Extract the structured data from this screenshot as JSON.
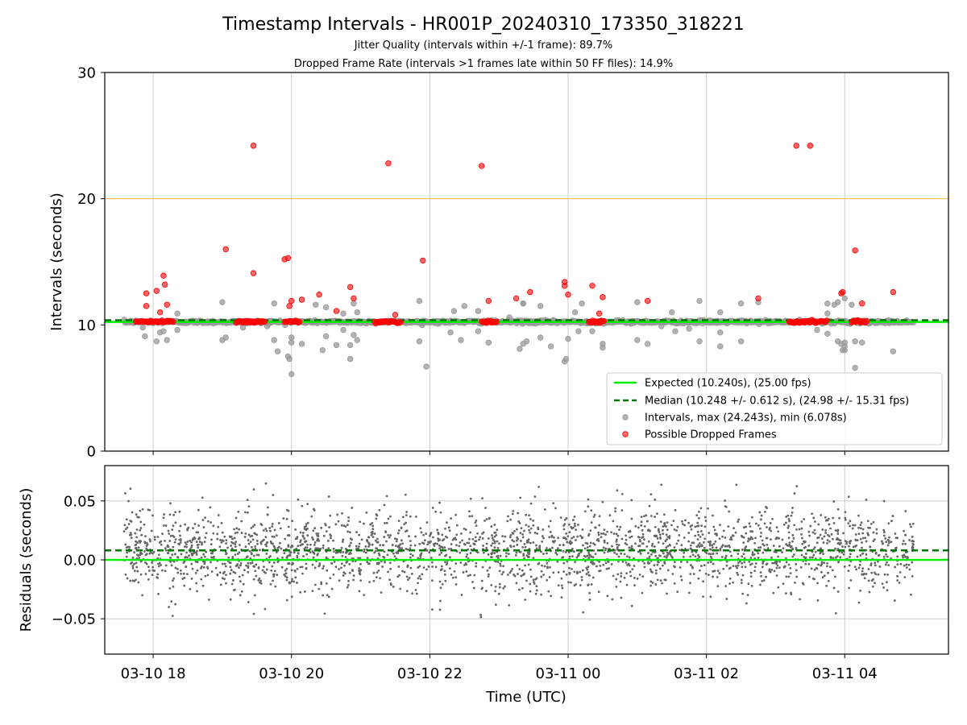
{
  "title": "Timestamp Intervals - HR001P_20240310_173350_318221",
  "subtitle_1": "Jitter Quality (intervals within +/-1 frame): 89.7%",
  "subtitle_2": "Dropped Frame Rate (intervals >1 frames late within 50 FF files): 14.9%",
  "colors": {
    "expected": "#00ee00",
    "median": "#007700",
    "intervals": "#999999",
    "dropped": "#ff0000",
    "threshold": "#ffbb55",
    "residuals": "#666666",
    "grid": "#cccccc"
  },
  "chart_data": [
    {
      "type": "scatter",
      "panel": "top",
      "ylabel": "Intervals (seconds)",
      "ylim": [
        0,
        30
      ],
      "yticks": [
        "0",
        "10",
        "20",
        "30"
      ],
      "grid": "vertical",
      "legend_position": "lower-right",
      "x_range_hours": [
        17.3,
        29.5
      ],
      "expected_line": 10.24,
      "median_line": 10.248,
      "threshold_line": 20.0,
      "legend": [
        "Expected (10.240s), (25.00 fps)",
        "Median (10.248 +/- 0.612 s), (24.98 +/- 15.31 fps)",
        "Intervals, max (24.243s), min (6.078s)",
        "Possible Dropped Frames"
      ],
      "dropped_frames": [
        {
          "x": 17.9,
          "y": 12.5
        },
        {
          "x": 17.9,
          "y": 11.5
        },
        {
          "x": 18.05,
          "y": 12.7
        },
        {
          "x": 18.1,
          "y": 11.0
        },
        {
          "x": 18.15,
          "y": 13.9
        },
        {
          "x": 18.17,
          "y": 13.2
        },
        {
          "x": 18.2,
          "y": 11.6
        },
        {
          "x": 19.05,
          "y": 16.0
        },
        {
          "x": 19.45,
          "y": 24.2
        },
        {
          "x": 19.45,
          "y": 14.1
        },
        {
          "x": 19.9,
          "y": 15.2
        },
        {
          "x": 19.95,
          "y": 15.3
        },
        {
          "x": 19.97,
          "y": 11.5
        },
        {
          "x": 20.0,
          "y": 11.9
        },
        {
          "x": 20.15,
          "y": 12.0
        },
        {
          "x": 20.4,
          "y": 12.4
        },
        {
          "x": 20.65,
          "y": 11.1
        },
        {
          "x": 20.85,
          "y": 13.0
        },
        {
          "x": 20.9,
          "y": 12.1
        },
        {
          "x": 21.4,
          "y": 22.8
        },
        {
          "x": 21.5,
          "y": 10.8
        },
        {
          "x": 21.9,
          "y": 15.1
        },
        {
          "x": 22.75,
          "y": 22.6
        },
        {
          "x": 22.85,
          "y": 11.9
        },
        {
          "x": 23.25,
          "y": 12.1
        },
        {
          "x": 23.45,
          "y": 12.6
        },
        {
          "x": 23.95,
          "y": 13.4
        },
        {
          "x": 23.95,
          "y": 13.1
        },
        {
          "x": 24.0,
          "y": 12.4
        },
        {
          "x": 24.35,
          "y": 13.1
        },
        {
          "x": 24.45,
          "y": 10.9
        },
        {
          "x": 24.5,
          "y": 12.2
        },
        {
          "x": 25.15,
          "y": 11.9
        },
        {
          "x": 26.75,
          "y": 12.1
        },
        {
          "x": 27.3,
          "y": 24.2
        },
        {
          "x": 27.5,
          "y": 24.2
        },
        {
          "x": 27.95,
          "y": 12.5
        },
        {
          "x": 27.97,
          "y": 12.6
        },
        {
          "x": 28.15,
          "y": 15.9
        },
        {
          "x": 28.25,
          "y": 11.7
        },
        {
          "x": 28.7,
          "y": 12.6
        }
      ],
      "dropped_frame_bands": [
        [
          17.75,
          18.3
        ],
        [
          19.2,
          19.62
        ],
        [
          19.9,
          20.12
        ],
        [
          21.2,
          21.58
        ],
        [
          22.75,
          22.98
        ],
        [
          24.3,
          24.52
        ],
        [
          27.2,
          27.75
        ],
        [
          28.1,
          28.32
        ]
      ],
      "outlier_intervals": [
        {
          "x": 17.85,
          "y": 9.8
        },
        {
          "x": 17.88,
          "y": 9.1
        },
        {
          "x": 18.05,
          "y": 8.7
        },
        {
          "x": 18.1,
          "y": 9.4
        },
        {
          "x": 18.15,
          "y": 9.5
        },
        {
          "x": 18.2,
          "y": 8.8
        },
        {
          "x": 18.35,
          "y": 9.6
        },
        {
          "x": 18.35,
          "y": 10.9
        },
        {
          "x": 19.0,
          "y": 11.8
        },
        {
          "x": 19.05,
          "y": 9.0
        },
        {
          "x": 19.0,
          "y": 8.8
        },
        {
          "x": 19.3,
          "y": 9.8
        },
        {
          "x": 19.65,
          "y": 9.9
        },
        {
          "x": 19.75,
          "y": 11.7
        },
        {
          "x": 19.75,
          "y": 8.8
        },
        {
          "x": 19.8,
          "y": 7.9
        },
        {
          "x": 19.95,
          "y": 7.5
        },
        {
          "x": 19.97,
          "y": 7.3
        },
        {
          "x": 20.0,
          "y": 6.1
        },
        {
          "x": 20.0,
          "y": 9.0
        },
        {
          "x": 20.0,
          "y": 8.6
        },
        {
          "x": 20.15,
          "y": 8.5
        },
        {
          "x": 20.35,
          "y": 11.6
        },
        {
          "x": 20.45,
          "y": 8.0
        },
        {
          "x": 20.5,
          "y": 9.1
        },
        {
          "x": 20.5,
          "y": 11.4
        },
        {
          "x": 20.65,
          "y": 8.4
        },
        {
          "x": 20.75,
          "y": 10.9
        },
        {
          "x": 20.75,
          "y": 9.6
        },
        {
          "x": 20.85,
          "y": 7.3
        },
        {
          "x": 20.85,
          "y": 8.4
        },
        {
          "x": 20.9,
          "y": 9.2
        },
        {
          "x": 20.9,
          "y": 11.7
        },
        {
          "x": 20.95,
          "y": 11.0
        },
        {
          "x": 20.95,
          "y": 8.8
        },
        {
          "x": 21.85,
          "y": 11.9
        },
        {
          "x": 21.85,
          "y": 8.7
        },
        {
          "x": 21.95,
          "y": 6.7
        },
        {
          "x": 22.3,
          "y": 9.4
        },
        {
          "x": 22.35,
          "y": 11.1
        },
        {
          "x": 22.45,
          "y": 8.8
        },
        {
          "x": 22.5,
          "y": 11.5
        },
        {
          "x": 22.7,
          "y": 11.1
        },
        {
          "x": 22.7,
          "y": 9.5
        },
        {
          "x": 22.85,
          "y": 8.6
        },
        {
          "x": 23.15,
          "y": 10.6
        },
        {
          "x": 23.3,
          "y": 8.1
        },
        {
          "x": 23.35,
          "y": 11.7
        },
        {
          "x": 23.35,
          "y": 8.5
        },
        {
          "x": 23.4,
          "y": 8.7
        },
        {
          "x": 23.6,
          "y": 11.5
        },
        {
          "x": 23.6,
          "y": 9.0
        },
        {
          "x": 23.75,
          "y": 8.3
        },
        {
          "x": 23.95,
          "y": 7.1
        },
        {
          "x": 23.97,
          "y": 7.3
        },
        {
          "x": 24.0,
          "y": 8.9
        },
        {
          "x": 24.1,
          "y": 11.0
        },
        {
          "x": 24.15,
          "y": 9.5
        },
        {
          "x": 24.2,
          "y": 11.7
        },
        {
          "x": 24.35,
          "y": 9.5
        },
        {
          "x": 24.5,
          "y": 8.5
        },
        {
          "x": 24.5,
          "y": 8.2
        },
        {
          "x": 25.0,
          "y": 11.8
        },
        {
          "x": 25.0,
          "y": 8.8
        },
        {
          "x": 25.15,
          "y": 8.5
        },
        {
          "x": 25.35,
          "y": 9.9
        },
        {
          "x": 25.5,
          "y": 11.0
        },
        {
          "x": 25.55,
          "y": 9.5
        },
        {
          "x": 25.75,
          "y": 9.7
        },
        {
          "x": 25.9,
          "y": 11.9
        },
        {
          "x": 25.9,
          "y": 8.7
        },
        {
          "x": 26.2,
          "y": 8.3
        },
        {
          "x": 26.2,
          "y": 9.4
        },
        {
          "x": 26.2,
          "y": 11.0
        },
        {
          "x": 26.5,
          "y": 11.7
        },
        {
          "x": 26.5,
          "y": 8.7
        },
        {
          "x": 26.75,
          "y": 11.8
        },
        {
          "x": 27.6,
          "y": 9.6
        },
        {
          "x": 27.75,
          "y": 10.9
        },
        {
          "x": 27.75,
          "y": 9.3
        },
        {
          "x": 27.85,
          "y": 11.6
        },
        {
          "x": 27.9,
          "y": 11.8
        },
        {
          "x": 27.9,
          "y": 8.7
        },
        {
          "x": 27.95,
          "y": 8.5
        },
        {
          "x": 27.97,
          "y": 8.0
        },
        {
          "x": 28.0,
          "y": 8.0
        },
        {
          "x": 28.0,
          "y": 8.3
        },
        {
          "x": 28.0,
          "y": 8.6
        },
        {
          "x": 28.0,
          "y": 12.1
        },
        {
          "x": 28.1,
          "y": 11.6
        },
        {
          "x": 28.15,
          "y": 8.7
        },
        {
          "x": 28.25,
          "y": 8.6
        },
        {
          "x": 28.15,
          "y": 6.6
        },
        {
          "x": 28.7,
          "y": 7.9
        },
        {
          "x": 27.75,
          "y": 11.7
        },
        {
          "x": 23.35,
          "y": 11.7
        }
      ]
    },
    {
      "type": "scatter",
      "panel": "bottom",
      "ylabel": "Residuals (seconds)",
      "xlabel": "Time (UTC)",
      "ylim": [
        -0.08,
        0.08
      ],
      "yticks": [
        "−0.05",
        "0.00",
        "0.05"
      ],
      "xticks": [
        "03-10 18",
        "03-10 20",
        "03-10 22",
        "03-11 00",
        "03-11 02",
        "03-11 04"
      ],
      "grid": "both",
      "expected_line": 0.0,
      "median_line": 0.008,
      "residual_spread": {
        "mean": 0.008,
        "std": 0.018,
        "n_points": 2600
      }
    }
  ]
}
